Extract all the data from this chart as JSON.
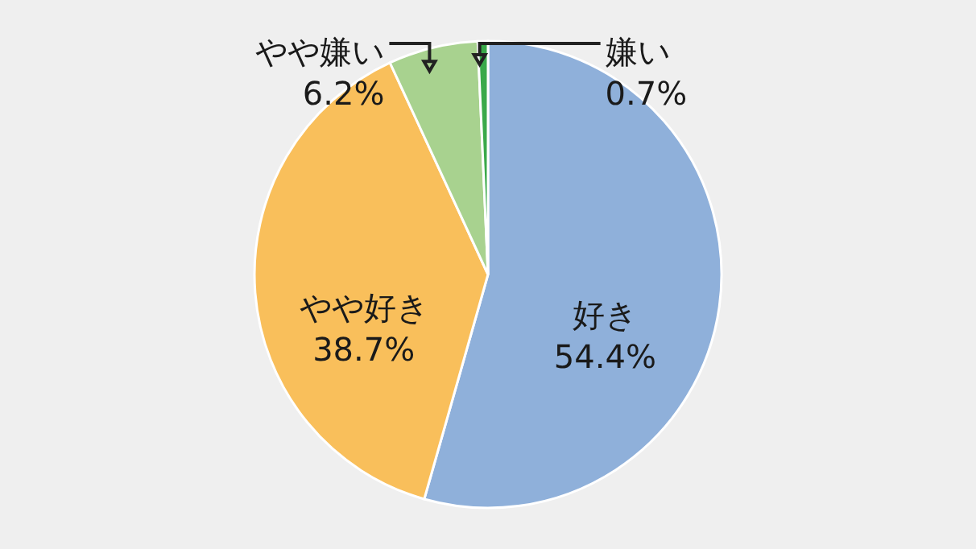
{
  "chart_data": {
    "type": "pie",
    "categories": [
      "好き",
      "やや好き",
      "やや嫌い",
      "嫌い"
    ],
    "values": [
      54.4,
      38.7,
      6.2,
      0.7
    ],
    "colors": [
      "#8fb0da",
      "#f9bf5b",
      "#a8d28f",
      "#3aa94a"
    ],
    "value_labels": [
      "54.4%",
      "38.7%",
      "6.2%",
      "0.7%"
    ]
  }
}
